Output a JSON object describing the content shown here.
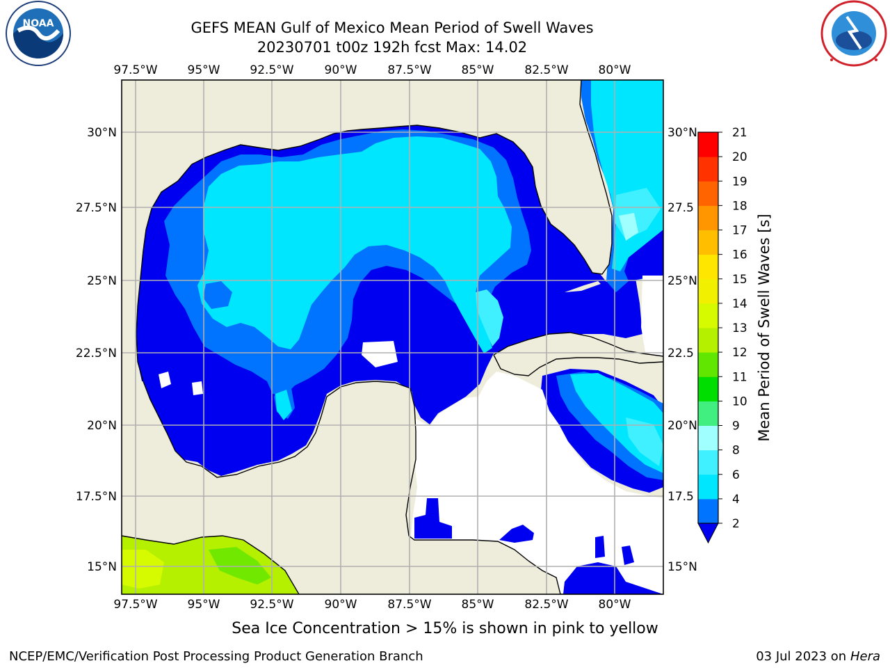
{
  "title": {
    "line1": "GEFS MEAN Gulf of Mexico Mean Period of Swell Waves",
    "line2": "20230701 t00z 192h fcst   Max: 14.02"
  },
  "logos": {
    "left": {
      "name": "NOAA",
      "icon": "noaa-seal"
    },
    "right": {
      "name": "NATIONAL WEATHER SERVICE",
      "icon": "nws-seal"
    }
  },
  "map": {
    "lon_ticks": [
      "97.5°W",
      "95°W",
      "92.5°W",
      "90°W",
      "87.5°W",
      "85°W",
      "82.5°W",
      "80°W"
    ],
    "lat_ticks_left": [
      "30°N",
      "27.5°N",
      "25°N",
      "22.5°N",
      "20°N",
      "17.5°N",
      "15°N"
    ],
    "lat_ticks_right": [
      "30°N",
      "27.5",
      "25°N",
      "22.5",
      "20°N",
      "17.5",
      "15°N"
    ],
    "colors": {
      "land": "#eeeddc",
      "ocean_missing": "#ffffff",
      "grid": "#b0b0b0",
      "coast": "#000000"
    }
  },
  "colorbar": {
    "label": "Mean Period of Swell Waves [s]",
    "levels": [
      "2",
      "4",
      "6",
      "8",
      "9",
      "10",
      "11",
      "12",
      "13",
      "14",
      "15",
      "16",
      "17",
      "18",
      "19",
      "20",
      "21"
    ],
    "colors": [
      "#0000f0",
      "#0073ff",
      "#00e6ff",
      "#40f0ff",
      "#a0ffff",
      "#40ef80",
      "#00dd00",
      "#60e600",
      "#b4f000",
      "#d6fa00",
      "#f0f000",
      "#ffe600",
      "#ffbe00",
      "#ff9600",
      "#ff6400",
      "#ff3200",
      "#ff0000"
    ]
  },
  "footer": {
    "ice_note": "Sea Ice Concentration > 15% is shown in pink to yellow",
    "credit": "NCEP/EMC/Verification Post Processing Product Generation Branch",
    "date": "03 Jul 2023 on ",
    "host": "Hera"
  }
}
